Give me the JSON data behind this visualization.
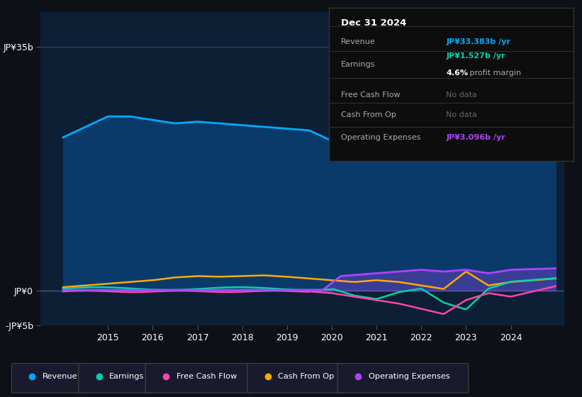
{
  "bg_color": "#0d1117",
  "chart_bg": "#0d1f35",
  "grid_color": "#1e3a5a",
  "title": "Dec 31 2024",
  "ylim": [
    -5,
    40
  ],
  "yticks": [
    -5,
    0,
    35
  ],
  "ytick_labels": [
    "-JP¥5b",
    "JP¥0",
    "JP¥35b"
  ],
  "xlim": [
    2013.5,
    2025.2
  ],
  "xticks": [
    2015,
    2016,
    2017,
    2018,
    2019,
    2020,
    2021,
    2022,
    2023,
    2024
  ],
  "revenue_color": "#00aaff",
  "earnings_color": "#00d4aa",
  "fcf_color": "#ff44aa",
  "cashfromop_color": "#ffaa00",
  "opex_color": "#aa44ff",
  "revenue_fill_color": "#0a3a6a",
  "legend_items": [
    {
      "label": "Revenue",
      "color": "#00aaff"
    },
    {
      "label": "Earnings",
      "color": "#00d4aa"
    },
    {
      "label": "Free Cash Flow",
      "color": "#ff44aa"
    },
    {
      "label": "Cash From Op",
      "color": "#ffaa00"
    },
    {
      "label": "Operating Expenses",
      "color": "#aa44ff"
    }
  ]
}
